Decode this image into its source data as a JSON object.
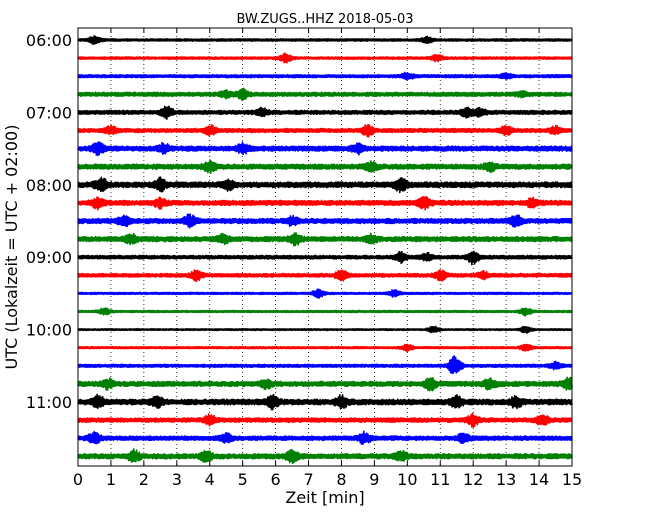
{
  "chart_data": {
    "type": "line",
    "title": "BW.ZUGS..HHZ 2018-05-03",
    "xlabel": "Zeit  [min]",
    "ylabel": "UTC (Lokalzeit = UTC + 02:00)",
    "xlim": [
      0,
      15
    ],
    "x_ticks": [
      "0",
      "1",
      "2",
      "3",
      "4",
      "5",
      "6",
      "7",
      "8",
      "9",
      "10",
      "11",
      "12",
      "13",
      "14",
      "15"
    ],
    "y_ticks": [
      "06:00",
      "07:00",
      "08:00",
      "09:00",
      "10:00",
      "11:00"
    ],
    "grid": "vertical dotted",
    "colors": [
      "#000000",
      "#ff0000",
      "#0000ff",
      "#008000"
    ],
    "traces": [
      {
        "start": "06:00",
        "amplitude": 0.12,
        "bursts": [
          [
            0.5,
            0.35
          ],
          [
            10.6,
            0.25
          ]
        ]
      },
      {
        "start": "06:15",
        "amplitude": 0.12,
        "bursts": [
          [
            6.3,
            0.4
          ],
          [
            10.9,
            0.3
          ]
        ]
      },
      {
        "start": "06:30",
        "amplitude": 0.15,
        "bursts": [
          [
            10.0,
            0.3
          ],
          [
            13.0,
            0.2
          ]
        ]
      },
      {
        "start": "06:45",
        "amplitude": 0.2,
        "bursts": [
          [
            5.0,
            0.45
          ],
          [
            4.5,
            0.3
          ],
          [
            13.5,
            0.2
          ]
        ]
      },
      {
        "start": "07:00",
        "amplitude": 0.2,
        "bursts": [
          [
            2.7,
            0.5
          ],
          [
            5.6,
            0.35
          ],
          [
            11.8,
            0.4
          ],
          [
            12.2,
            0.3
          ]
        ]
      },
      {
        "start": "07:15",
        "amplitude": 0.2,
        "bursts": [
          [
            1.0,
            0.35
          ],
          [
            4.0,
            0.45
          ],
          [
            8.8,
            0.5
          ],
          [
            13.0,
            0.4
          ],
          [
            14.5,
            0.3
          ]
        ]
      },
      {
        "start": "07:30",
        "amplitude": 0.25,
        "bursts": [
          [
            0.6,
            0.5
          ],
          [
            2.6,
            0.4
          ],
          [
            5.0,
            0.4
          ],
          [
            8.5,
            0.4
          ]
        ]
      },
      {
        "start": "07:45",
        "amplitude": 0.25,
        "bursts": [
          [
            4.0,
            0.45
          ],
          [
            8.9,
            0.35
          ],
          [
            12.5,
            0.35
          ]
        ]
      },
      {
        "start": "08:00",
        "amplitude": 0.28,
        "bursts": [
          [
            0.7,
            0.6
          ],
          [
            2.5,
            0.5
          ],
          [
            4.6,
            0.4
          ],
          [
            9.8,
            0.55
          ]
        ]
      },
      {
        "start": "08:15",
        "amplitude": 0.25,
        "bursts": [
          [
            0.6,
            0.45
          ],
          [
            2.5,
            0.4
          ],
          [
            10.5,
            0.5
          ],
          [
            13.8,
            0.35
          ]
        ]
      },
      {
        "start": "08:30",
        "amplitude": 0.25,
        "bursts": [
          [
            1.4,
            0.45
          ],
          [
            3.4,
            0.5
          ],
          [
            6.5,
            0.35
          ],
          [
            13.3,
            0.45
          ]
        ]
      },
      {
        "start": "08:45",
        "amplitude": 0.25,
        "bursts": [
          [
            1.6,
            0.4
          ],
          [
            4.4,
            0.4
          ],
          [
            6.6,
            0.5
          ],
          [
            8.9,
            0.35
          ]
        ]
      },
      {
        "start": "09:00",
        "amplitude": 0.18,
        "bursts": [
          [
            9.8,
            0.45
          ],
          [
            12.0,
            0.6
          ],
          [
            10.6,
            0.3
          ]
        ]
      },
      {
        "start": "09:15",
        "amplitude": 0.18,
        "bursts": [
          [
            3.6,
            0.45
          ],
          [
            8.0,
            0.5
          ],
          [
            11.0,
            0.45
          ],
          [
            12.3,
            0.3
          ]
        ]
      },
      {
        "start": "09:30",
        "amplitude": 0.1,
        "bursts": [
          [
            7.3,
            0.4
          ],
          [
            9.6,
            0.3
          ]
        ]
      },
      {
        "start": "09:45",
        "amplitude": 0.1,
        "bursts": [
          [
            0.8,
            0.3
          ],
          [
            13.6,
            0.35
          ]
        ]
      },
      {
        "start": "10:00",
        "amplitude": 0.08,
        "bursts": [
          [
            10.8,
            0.3
          ],
          [
            13.6,
            0.3
          ]
        ]
      },
      {
        "start": "10:15",
        "amplitude": 0.1,
        "bursts": [
          [
            10.0,
            0.3
          ],
          [
            13.6,
            0.3
          ]
        ]
      },
      {
        "start": "10:30",
        "amplitude": 0.15,
        "bursts": [
          [
            11.5,
            0.35
          ],
          [
            11.4,
            0.6
          ],
          [
            14.5,
            0.3
          ]
        ]
      },
      {
        "start": "10:45",
        "amplitude": 0.25,
        "bursts": [
          [
            0.9,
            0.4
          ],
          [
            5.7,
            0.35
          ],
          [
            10.7,
            0.5
          ],
          [
            12.5,
            0.45
          ],
          [
            14.9,
            0.6
          ]
        ]
      },
      {
        "start": "11:00",
        "amplitude": 0.28,
        "bursts": [
          [
            0.6,
            0.55
          ],
          [
            2.4,
            0.5
          ],
          [
            5.9,
            0.5
          ],
          [
            8.0,
            0.5
          ],
          [
            11.5,
            0.5
          ],
          [
            13.3,
            0.45
          ]
        ]
      },
      {
        "start": "11:15",
        "amplitude": 0.22,
        "bursts": [
          [
            4.0,
            0.5
          ],
          [
            12.0,
            0.5
          ],
          [
            14.1,
            0.45
          ]
        ]
      },
      {
        "start": "11:30",
        "amplitude": 0.22,
        "bursts": [
          [
            0.5,
            0.5
          ],
          [
            8.7,
            0.5
          ],
          [
            11.7,
            0.4
          ],
          [
            4.5,
            0.35
          ]
        ]
      },
      {
        "start": "11:45",
        "amplitude": 0.25,
        "bursts": [
          [
            1.7,
            0.5
          ],
          [
            3.9,
            0.45
          ],
          [
            6.5,
            0.55
          ],
          [
            9.8,
            0.4
          ]
        ]
      }
    ]
  }
}
